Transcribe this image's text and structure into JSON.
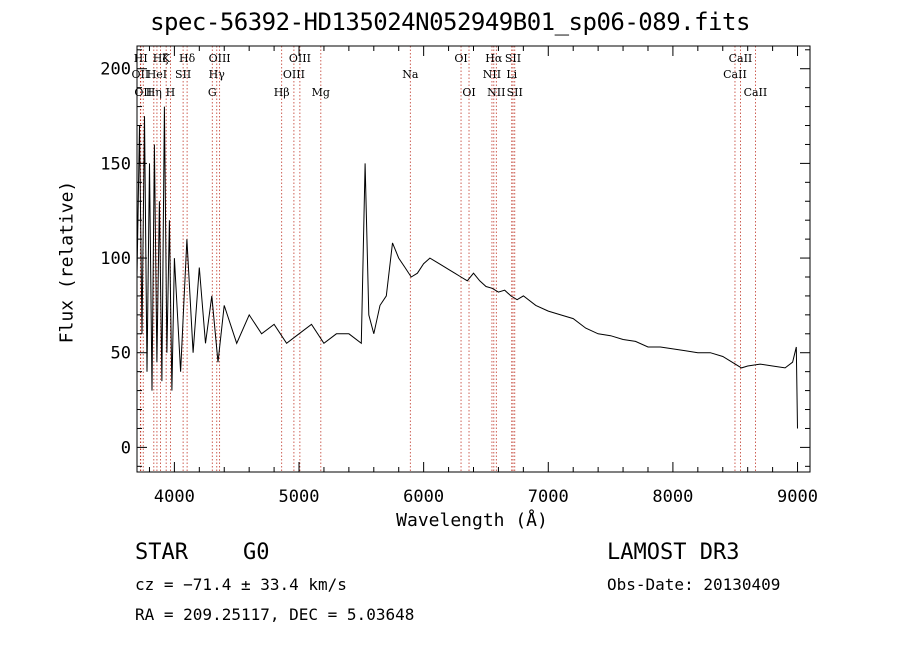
{
  "chart_data": {
    "type": "line",
    "title": "spec-56392-HD135024N052949B01_sp06-089.fits",
    "xlabel": "Wavelength (Å)",
    "ylabel": "Flux (relative)",
    "xlim": [
      3700,
      9100
    ],
    "ylim": [
      -13,
      212
    ],
    "x_ticks": [
      4000,
      5000,
      6000,
      7000,
      8000,
      9000
    ],
    "y_ticks": [
      0,
      50,
      100,
      150,
      200
    ],
    "series": [
      {
        "name": "flux",
        "x": [
          3700,
          3720,
          3740,
          3760,
          3780,
          3800,
          3820,
          3840,
          3860,
          3880,
          3900,
          3920,
          3940,
          3960,
          3980,
          4000,
          4050,
          4100,
          4150,
          4200,
          4250,
          4300,
          4350,
          4400,
          4500,
          4600,
          4700,
          4800,
          4900,
          5000,
          5100,
          5200,
          5300,
          5400,
          5500,
          5530,
          5560,
          5600,
          5650,
          5700,
          5750,
          5800,
          5850,
          5900,
          5950,
          6000,
          6050,
          6100,
          6150,
          6200,
          6250,
          6300,
          6350,
          6400,
          6450,
          6500,
          6550,
          6600,
          6650,
          6700,
          6750,
          6800,
          6900,
          7000,
          7100,
          7200,
          7300,
          7400,
          7500,
          7600,
          7700,
          7800,
          7900,
          8000,
          8100,
          8200,
          8300,
          8400,
          8500,
          8550,
          8600,
          8700,
          8800,
          8900,
          8960,
          8990,
          9000
        ],
        "y": [
          90,
          170,
          60,
          175,
          40,
          150,
          30,
          160,
          45,
          130,
          35,
          180,
          50,
          120,
          30,
          100,
          40,
          110,
          50,
          95,
          55,
          80,
          45,
          75,
          55,
          70,
          60,
          65,
          55,
          60,
          65,
          55,
          60,
          60,
          55,
          150,
          70,
          60,
          75,
          80,
          108,
          100,
          95,
          90,
          92,
          97,
          100,
          98,
          96,
          94,
          92,
          90,
          88,
          92,
          88,
          85,
          84,
          82,
          83,
          80,
          78,
          80,
          75,
          72,
          70,
          68,
          63,
          60,
          59,
          57,
          56,
          53,
          53,
          52,
          51,
          50,
          50,
          48,
          44,
          42,
          43,
          44,
          43,
          42,
          45,
          53,
          10
        ]
      }
    ],
    "lines": [
      {
        "label": "HI",
        "wavelength": 3730,
        "row": 1
      },
      {
        "label": "OII",
        "wavelength": 3727,
        "row": 2
      },
      {
        "label": "OII",
        "wavelength": 3750,
        "row": 3
      },
      {
        "label": "Hζ",
        "wavelength": 3889,
        "row": 1
      },
      {
        "label": "HeI",
        "wavelength": 3860,
        "row": 2
      },
      {
        "label": "Hη",
        "wavelength": 3835,
        "row": 3
      },
      {
        "label": "K",
        "wavelength": 3934,
        "row": 1
      },
      {
        "label": "SII",
        "wavelength": 4070,
        "row": 2
      },
      {
        "label": "H",
        "wavelength": 3968,
        "row": 3
      },
      {
        "label": "Hδ",
        "wavelength": 4102,
        "row": 1
      },
      {
        "label": "OIII",
        "wavelength": 4363,
        "row": 1
      },
      {
        "label": "Hγ",
        "wavelength": 4340,
        "row": 2
      },
      {
        "label": "G",
        "wavelength": 4304,
        "row": 3
      },
      {
        "label": "OIII",
        "wavelength": 5007,
        "row": 1
      },
      {
        "label": "OIII",
        "wavelength": 4959,
        "row": 2
      },
      {
        "label": "Hβ",
        "wavelength": 4861,
        "row": 3
      },
      {
        "label": "Mg",
        "wavelength": 5175,
        "row": 3
      },
      {
        "label": "Na",
        "wavelength": 5893,
        "row": 2
      },
      {
        "label": "OI",
        "wavelength": 6300,
        "row": 1
      },
      {
        "label": "OI",
        "wavelength": 6364,
        "row": 3
      },
      {
        "label": "Hα",
        "wavelength": 6563,
        "row": 1
      },
      {
        "label": "NII",
        "wavelength": 6548,
        "row": 2
      },
      {
        "label": "NII",
        "wavelength": 6583,
        "row": 3
      },
      {
        "label": "SII",
        "wavelength": 6717,
        "row": 1
      },
      {
        "label": "Li",
        "wavelength": 6707,
        "row": 2
      },
      {
        "label": "SII",
        "wavelength": 6731,
        "row": 3
      },
      {
        "label": "CaII",
        "wavelength": 8542,
        "row": 1
      },
      {
        "label": "CaII",
        "wavelength": 8498,
        "row": 2
      },
      {
        "label": "CaII",
        "wavelength": 8662,
        "row": 3
      }
    ]
  },
  "info": {
    "object_class": "STAR",
    "subclass": "G0",
    "survey": "LAMOST DR3",
    "redshift": "cz = −71.4 ± 33.4 km/s",
    "obs_date": "Obs-Date: 20130409",
    "coords": "RA = 209.25117, DEC =   5.03648"
  },
  "colors": {
    "spectrum": "#000000",
    "line_markers": "#c0392b",
    "axes": "#000000"
  }
}
